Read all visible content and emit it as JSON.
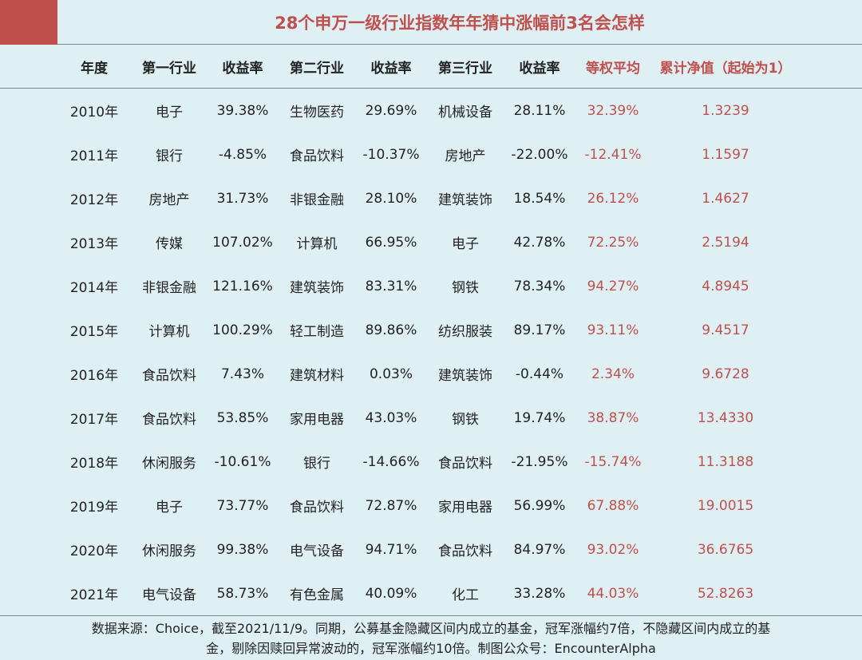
{
  "title": "28个申万一级行业指数年年猜中涨幅前3名会怎样",
  "colors": {
    "accent": "#c0504d",
    "background": "#dff0f5"
  },
  "headers": [
    "年度",
    "第一行业",
    "收益率",
    "第二行业",
    "收益率",
    "第三行业",
    "收益率",
    "等权平均",
    "累计净值（起始为1）"
  ],
  "rows": [
    [
      "2010年",
      "电子",
      "39.38%",
      "生物医药",
      "29.69%",
      "机械设备",
      "28.11%",
      "32.39%",
      "1.3239"
    ],
    [
      "2011年",
      "银行",
      "-4.85%",
      "食品饮料",
      "-10.37%",
      "房地产",
      "-22.00%",
      "-12.41%",
      "1.1597"
    ],
    [
      "2012年",
      "房地产",
      "31.73%",
      "非银金融",
      "28.10%",
      "建筑装饰",
      "18.54%",
      "26.12%",
      "1.4627"
    ],
    [
      "2013年",
      "传媒",
      "107.02%",
      "计算机",
      "66.95%",
      "电子",
      "42.78%",
      "72.25%",
      "2.5194"
    ],
    [
      "2014年",
      "非银金融",
      "121.16%",
      "建筑装饰",
      "83.31%",
      "钢铁",
      "78.34%",
      "94.27%",
      "4.8945"
    ],
    [
      "2015年",
      "计算机",
      "100.29%",
      "轻工制造",
      "89.86%",
      "纺织服装",
      "89.17%",
      "93.11%",
      "9.4517"
    ],
    [
      "2016年",
      "食品饮料",
      "7.43%",
      "建筑材料",
      "0.03%",
      "建筑装饰",
      "-0.44%",
      "2.34%",
      "9.6728"
    ],
    [
      "2017年",
      "食品饮料",
      "53.85%",
      "家用电器",
      "43.03%",
      "钢铁",
      "19.74%",
      "38.87%",
      "13.4330"
    ],
    [
      "2018年",
      "休闲服务",
      "-10.61%",
      "银行",
      "-14.66%",
      "食品饮料",
      "-21.95%",
      "-15.74%",
      "11.3188"
    ],
    [
      "2019年",
      "电子",
      "73.77%",
      "食品饮料",
      "72.87%",
      "家用电器",
      "56.99%",
      "67.88%",
      "19.0015"
    ],
    [
      "2020年",
      "休闲服务",
      "99.38%",
      "电气设备",
      "94.71%",
      "食品饮料",
      "84.97%",
      "93.02%",
      "36.6765"
    ],
    [
      "2021年",
      "电气设备",
      "58.73%",
      "有色金属",
      "40.09%",
      "化工",
      "33.28%",
      "44.03%",
      "52.8263"
    ]
  ],
  "footer": {
    "line1": "数据来源：Choice，截至2021/11/9。同期，公募基金隐藏区间内成立的基金，冠军涨幅约7倍，不隐藏区间内成立的基",
    "line2": "金，剔除因赎回异常波动的，冠军涨幅约10倍。制图公众号：EncounterAlpha"
  }
}
